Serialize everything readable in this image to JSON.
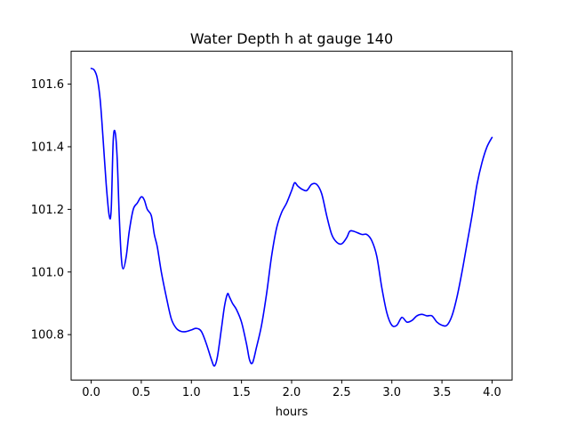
{
  "chart_data": {
    "type": "line",
    "title": "Water Depth h at gauge 140",
    "xlabel": "hours",
    "ylabel": "",
    "xlim": [
      -0.2,
      4.2
    ],
    "ylim": [
      100.655,
      101.705
    ],
    "xticks": [
      {
        "value": 0.0,
        "label": "0.0"
      },
      {
        "value": 0.5,
        "label": "0.5"
      },
      {
        "value": 1.0,
        "label": "1.0"
      },
      {
        "value": 1.5,
        "label": "1.5"
      },
      {
        "value": 2.0,
        "label": "2.0"
      },
      {
        "value": 2.5,
        "label": "2.5"
      },
      {
        "value": 3.0,
        "label": "3.0"
      },
      {
        "value": 3.5,
        "label": "3.5"
      },
      {
        "value": 4.0,
        "label": "4.0"
      }
    ],
    "yticks": [
      {
        "value": 100.8,
        "label": "100.8"
      },
      {
        "value": 101.0,
        "label": "101.0"
      },
      {
        "value": 101.2,
        "label": "101.2"
      },
      {
        "value": 101.4,
        "label": "101.4"
      },
      {
        "value": 101.6,
        "label": "101.6"
      }
    ],
    "grid": false,
    "series": [
      {
        "color": "#0000ff",
        "x": [
          0.0,
          0.03,
          0.06,
          0.09,
          0.12,
          0.15,
          0.18,
          0.2,
          0.22,
          0.24,
          0.26,
          0.28,
          0.3,
          0.32,
          0.35,
          0.38,
          0.42,
          0.46,
          0.5,
          0.53,
          0.56,
          0.6,
          0.63,
          0.66,
          0.7,
          0.75,
          0.8,
          0.85,
          0.9,
          0.95,
          1.0,
          1.05,
          1.1,
          1.15,
          1.2,
          1.23,
          1.26,
          1.3,
          1.33,
          1.36,
          1.38,
          1.41,
          1.45,
          1.5,
          1.55,
          1.58,
          1.61,
          1.65,
          1.7,
          1.75,
          1.8,
          1.85,
          1.9,
          1.95,
          2.0,
          2.03,
          2.06,
          2.1,
          2.15,
          2.2,
          2.25,
          2.3,
          2.35,
          2.4,
          2.45,
          2.5,
          2.55,
          2.58,
          2.62,
          2.7,
          2.75,
          2.8,
          2.85,
          2.9,
          2.95,
          3.0,
          3.05,
          3.1,
          3.15,
          3.2,
          3.25,
          3.3,
          3.35,
          3.4,
          3.45,
          3.5,
          3.55,
          3.6,
          3.65,
          3.7,
          3.75,
          3.8,
          3.85,
          3.9,
          3.95,
          4.0
        ],
        "y": [
          101.65,
          101.645,
          101.62,
          101.55,
          101.42,
          101.28,
          101.18,
          101.2,
          101.42,
          101.445,
          101.36,
          101.18,
          101.05,
          101.01,
          101.05,
          101.13,
          101.2,
          101.22,
          101.24,
          101.23,
          101.2,
          101.18,
          101.12,
          101.08,
          101.0,
          100.92,
          100.85,
          100.82,
          100.81,
          100.81,
          100.815,
          100.82,
          100.81,
          100.77,
          100.72,
          100.7,
          100.73,
          100.82,
          100.89,
          100.93,
          100.92,
          100.9,
          100.88,
          100.84,
          100.77,
          100.72,
          100.71,
          100.76,
          100.83,
          100.93,
          101.05,
          101.14,
          101.19,
          101.22,
          101.26,
          101.285,
          101.275,
          101.265,
          101.26,
          101.28,
          101.28,
          101.25,
          101.18,
          101.12,
          101.095,
          101.09,
          101.11,
          101.13,
          101.13,
          101.12,
          101.12,
          101.1,
          101.05,
          100.95,
          100.87,
          100.83,
          100.83,
          100.855,
          100.84,
          100.845,
          100.86,
          100.865,
          100.86,
          100.86,
          100.84,
          100.83,
          100.83,
          100.86,
          100.92,
          101.0,
          101.09,
          101.18,
          101.28,
          101.35,
          101.4,
          101.43
        ]
      }
    ]
  }
}
